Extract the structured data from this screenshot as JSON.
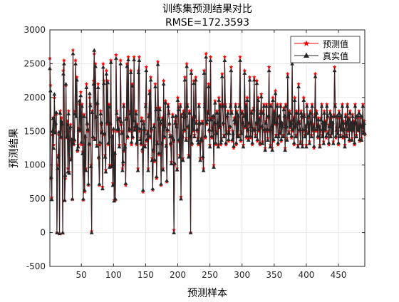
{
  "colors": {
    "background": "#ffffff",
    "axes": "#262626",
    "grid": "#e6e6e6",
    "predicted": "#ff0000",
    "actual": "#262626"
  },
  "chart_data": {
    "type": "line",
    "title": "训练集预测结果对比",
    "subtitle": "RMSE=172.3593",
    "xlabel": "预测样本",
    "ylabel": "预测结果",
    "xlim": [
      1,
      491
    ],
    "ylim": [
      -500,
      3000
    ],
    "xticks": [
      50,
      100,
      150,
      200,
      250,
      300,
      350,
      400,
      450
    ],
    "yticks": [
      -500,
      0,
      500,
      1000,
      1500,
      2000,
      2500,
      3000
    ],
    "grid": true,
    "legend_position": "top-right",
    "marker": "star for 预测值, upward triangle for 真实值",
    "series": [
      {
        "name": "预测值",
        "color": "#ff0000",
        "values": [
          2580,
          2180,
          800,
          520,
          1450,
          1700,
          1300,
          2000,
          1500,
          1600,
          1750,
          0,
          1000,
          1150,
          1450,
          -20,
          1800,
          1400,
          1700,
          1600,
          -10,
          2400,
          2550,
          470,
          800,
          2180,
          1400,
          1650,
          950,
          1800,
          900,
          1500,
          1600,
          1100,
          1350,
          490,
          2700,
          1300,
          1350,
          1800,
          2550,
          1750,
          2300,
          1200,
          1300,
          1550,
          1900,
          1500,
          2080,
          1300,
          1900,
          1200,
          480,
          1750,
          600,
          1400,
          950,
          2200,
          1600,
          1500,
          700,
          1300,
          2000,
          1900,
          1000,
          20,
          1800,
          1400,
          2250,
          2650,
          1400,
          2500,
          1700,
          1300,
          1900,
          2200,
          1100,
          700,
          1300,
          1800,
          1600,
          1500,
          680,
          2500,
          2250,
          1450,
          1150,
          930,
          2400,
          1600,
          2250,
          1300,
          1900,
          1000,
          1600,
          2550,
          1000,
          1400,
          730,
          1500,
          480,
          1150,
          480,
          2630,
          1800,
          1500,
          1700,
          1500,
          1300,
          1650,
          2550,
          1600,
          1500,
          950,
          1000,
          1900,
          1200,
          1300,
          700,
          1700,
          2500,
          1400,
          2600,
          1550,
          1500,
          1800,
          2400,
          1300,
          2200,
          1400,
          1700,
          2600,
          1550,
          1550,
          1800,
          1300,
          1600,
          950,
          2400,
          2600,
          1500,
          1400,
          1300,
          1700,
          1200,
          600,
          1650,
          1500,
          1300,
          1900,
          2450,
          1350,
          1500,
          950,
          1750,
          2100,
          1400,
          2300,
          1500,
          1100,
          630,
          1200,
          1600,
          1050,
          2200,
          1850,
          800,
          1350,
          2530,
          1700,
          1150,
          1850,
          1600,
          700,
          1300,
          1700,
          950,
          2250,
          1400,
          1600,
          1950,
          1300,
          750,
          1500,
          1900,
          1800,
          1600,
          1450,
          1300,
          1050,
          1400,
          1750,
          1350,
          40,
          1000,
          1650,
          1700,
          1600,
          950,
          2000,
          1850,
          1350,
          1150,
          1900,
          530,
          1750,
          1400,
          1100,
          1800,
          1500,
          2300,
          1700,
          1400,
          2500,
          1900,
          1550,
          1150,
          1800,
          1400,
          0,
          2400,
          1300,
          1700,
          1500,
          2250,
          1450,
          1700,
          2300,
          1650,
          1500,
          1400,
          1300,
          1900,
          1600,
          1100,
          1350,
          1400,
          1650,
          1100,
          950,
          2400,
          1900,
          1400,
          2650,
          1600,
          1700,
          1800,
          2200,
          1500,
          1300,
          2600,
          1700,
          1400,
          1550,
          1700,
          1000,
          1600,
          1950,
          1300,
          1500,
          1800,
          1600,
          1300,
          2000,
          1550,
          1900,
          1300,
          1400,
          2350,
          1900,
          1600,
          1450,
          2600,
          1900,
          1300,
          1500,
          1700,
          1800,
          1350,
          1500,
          1550,
          1900,
          2450,
          1800,
          1350,
          1500,
          1250,
          1700,
          1600,
          1900,
          1300,
          1800,
          1450,
          1700,
          1450,
          1900,
          2600,
          1350,
          1500,
          1800,
          1600,
          1300,
          1750,
          2400,
          1550,
          1900,
          1400,
          2000,
          1500,
          1400,
          1600,
          2300,
          1400,
          1600,
          1800,
          1300,
          1550,
          1850,
          2300,
          1500,
          1450,
          1600,
          2250,
          1350,
          2000,
          1500,
          1700,
          1300,
          1800,
          2050,
          1550,
          1350,
          1800,
          1900,
          1500,
          1250,
          1650,
          1900,
          1500,
          1400,
          1700,
          2450,
          1500,
          1300,
          1900,
          1550,
          1250,
          2000,
          1350,
          1800,
          1600,
          2100,
          1450,
          1600,
          1900,
          1300,
          1450,
          1700,
          1500,
          1900,
          1350,
          1600,
          1600,
          1450,
          1850,
          1700,
          1250,
          1900,
          1550,
          1400,
          2350,
          1700,
          1500,
          1800,
          1550,
          1650,
          1400,
          2550,
          1500,
          1700,
          1300,
          2000,
          1550,
          1450,
          1800,
          1600,
          1300,
          2200,
          1650,
          1500,
          1350,
          1800,
          1700,
          1300,
          1500,
          2000,
          1750,
          1450,
          1550,
          1300,
          1900,
          1600,
          1500,
          1700,
          1350,
          1800,
          1600,
          1450,
          1900,
          1500,
          1600,
          1250,
          1750,
          2350,
          1500,
          1800,
          1600,
          1400,
          1700,
          1550,
          1300,
          1500,
          1700,
          1900,
          1450,
          1600,
          1350,
          1800,
          1500,
          1650,
          1400,
          1900,
          1700,
          1500,
          1300,
          1600,
          1800,
          1450,
          1700,
          1500,
          1600,
          1350,
          1750,
          2450,
          1900,
          1400,
          1550,
          1700,
          1500,
          1300,
          1800,
          1600,
          1450,
          1700,
          1550,
          1900,
          1400,
          1650,
          1500,
          1300,
          1750,
          1600,
          1450,
          1900,
          1500,
          1700,
          1350,
          1800,
          1550,
          1600,
          1400,
          1750,
          1500,
          1650,
          1300,
          1900,
          1600,
          1450,
          1700,
          1550,
          1500,
          1800,
          1350,
          1600,
          1700,
          1400,
          1550,
          1900,
          1500,
          1650,
          1450
        ]
      },
      {
        "name": "真实值",
        "color": "#262626",
        "values": [
          2430,
          2100,
          820,
          490,
          1500,
          1690,
          1250,
          2050,
          1480,
          1620,
          1780,
          0,
          950,
          1120,
          1490,
          -10,
          1770,
          1420,
          1650,
          1610,
          0,
          2350,
          2500,
          480,
          850,
          2200,
          1420,
          1600,
          900,
          1760,
          880,
          1550,
          1570,
          1080,
          1380,
          500,
          2650,
          1320,
          1380,
          1760,
          2500,
          1720,
          2260,
          1230,
          1270,
          1520,
          1950,
          1530,
          2030,
          1340,
          1870,
          1170,
          500,
          1720,
          630,
          1430,
          920,
          2150,
          1620,
          1530,
          720,
          1320,
          2060,
          1880,
          980,
          0,
          1780,
          1420,
          2200,
          2700,
          1380,
          2460,
          1720,
          1280,
          1920,
          2150,
          1120,
          720,
          1340,
          1760,
          1630,
          1480,
          650,
          2450,
          2210,
          1470,
          1120,
          900,
          2350,
          1640,
          2220,
          1330,
          1860,
          970,
          1620,
          2520,
          980,
          1430,
          700,
          1540,
          470,
          1180,
          500,
          2580,
          1770,
          1530,
          1680,
          1530,
          1270,
          1700,
          2500,
          1640,
          1470,
          920,
          1050,
          1870,
          1230,
          1270,
          730,
          1680,
          2460,
          1430,
          2560,
          1520,
          1540,
          1760,
          2370,
          1340,
          2170,
          1420,
          1660,
          2560,
          1520,
          1580,
          1760,
          1330,
          1570,
          920,
          2370,
          2550,
          1540,
          1380,
          1330,
          1660,
          1240,
          630,
          1610,
          1540,
          1270,
          1870,
          2400,
          1380,
          1470,
          920,
          1720,
          2060,
          1430,
          2260,
          1540,
          1070,
          650,
          1230,
          1570,
          1080,
          2160,
          1820,
          830,
          1320,
          2490,
          1680,
          1180,
          1820,
          1630,
          720,
          1330,
          1670,
          930,
          2200,
          1430,
          1570,
          1920,
          1280,
          770,
          1530,
          1870,
          1770,
          1620,
          1420,
          1330,
          1020,
          1430,
          1720,
          1380,
          0,
          1030,
          1620,
          1730,
          1570,
          930,
          1960,
          1820,
          1380,
          1120,
          1870,
          500,
          1720,
          1430,
          1070,
          1770,
          1530,
          2260,
          1730,
          1370,
          2460,
          1870,
          1580,
          1120,
          1770,
          1430,
          0,
          2360,
          1330,
          1670,
          1530,
          2210,
          1420,
          1730,
          2260,
          1620,
          1530,
          1370,
          1330,
          1870,
          1630,
          1070,
          1380,
          1370,
          1620,
          1130,
          920,
          2360,
          1870,
          1430,
          2600,
          1630,
          1670,
          1770,
          2160,
          1530,
          1270,
          2550,
          1670,
          1430,
          1520,
          1730,
          970,
          1630,
          1920,
          1330,
          1470,
          1770,
          1630,
          1270,
          1960,
          1580,
          1870,
          1330,
          1370,
          2310,
          1870,
          1630,
          1420,
          2550,
          1870,
          1330,
          1470,
          1730,
          1770,
          1380,
          1470,
          1580,
          1870,
          2400,
          1770,
          1380,
          1470,
          1280,
          1670,
          1630,
          1870,
          1330,
          1770,
          1420,
          1730,
          1420,
          1870,
          2550,
          1380,
          1470,
          1770,
          1630,
          1270,
          1720,
          2360,
          1580,
          1870,
          1430,
          1960,
          1530,
          1370,
          1630,
          2260,
          1430,
          1570,
          1770,
          1330,
          1520,
          1820,
          2260,
          1530,
          1420,
          1630,
          2210,
          1380,
          1960,
          1530,
          1670,
          1330,
          1770,
          2010,
          1580,
          1320,
          1770,
          1870,
          1530,
          1220,
          1620,
          1870,
          1530,
          1370,
          1730,
          2400,
          1530,
          1270,
          1870,
          1580,
          1220,
          1960,
          1380,
          1770,
          1630,
          2060,
          1420,
          1630,
          1870,
          1330,
          1420,
          1730,
          1470,
          1870,
          1380,
          1630,
          1570,
          1420,
          1820,
          1730,
          1220,
          1870,
          1580,
          1370,
          2310,
          1730,
          1470,
          1770,
          1580,
          1620,
          1430,
          2500,
          1530,
          1670,
          1330,
          1960,
          1580,
          1420,
          1770,
          1630,
          1270,
          2160,
          1620,
          1530,
          1320,
          1770,
          1730,
          1270,
          1530,
          1960,
          1720,
          1420,
          1580,
          1270,
          1870,
          1630,
          1470,
          1730,
          1320,
          1770,
          1630,
          1420,
          1870,
          1530,
          1570,
          1280,
          1720,
          2310,
          1530,
          1770,
          1570,
          1430,
          1670,
          1580,
          1270,
          1530,
          1670,
          1870,
          1420,
          1630,
          1320,
          1770,
          1530,
          1620,
          1430,
          1870,
          1730,
          1470,
          1330,
          1570,
          1770,
          1420,
          1730,
          1470,
          1630,
          1320,
          1720,
          2400,
          1870,
          1430,
          1520,
          1730,
          1470,
          1330,
          1770,
          1570,
          1420,
          1730,
          1520,
          1870,
          1430,
          1620,
          1530,
          1270,
          1720,
          1630,
          1420,
          1870,
          1530,
          1670,
          1380,
          1770,
          1520,
          1630,
          1370,
          1720,
          1530,
          1620,
          1330,
          1870,
          1630,
          1420,
          1730,
          1520,
          1530,
          1770,
          1380,
          1570,
          1730,
          1370,
          1580,
          1870,
          1470,
          1620,
          1470
        ]
      }
    ]
  }
}
